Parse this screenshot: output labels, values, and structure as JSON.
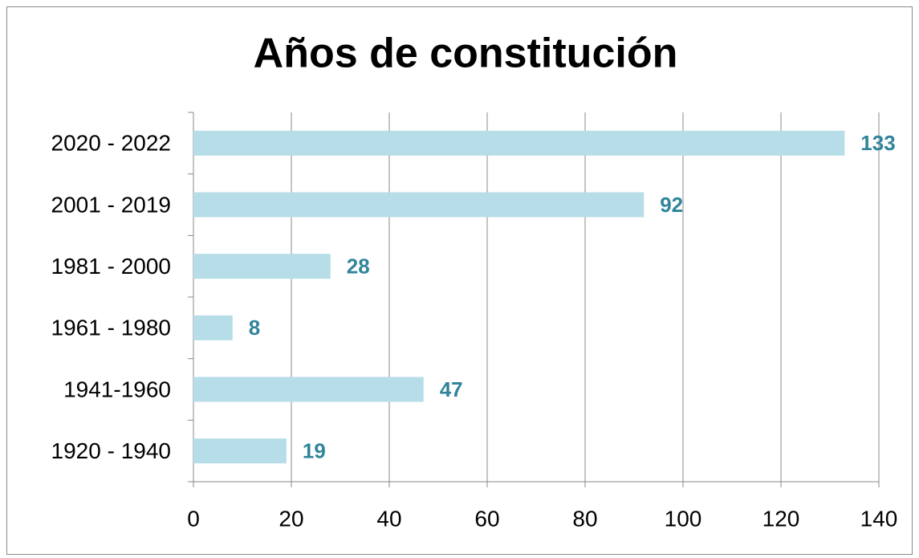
{
  "chart_data": {
    "type": "hbar",
    "title": "Años de constitución",
    "categories": [
      "2020 - 2022",
      "2001 - 2019",
      "1981 - 2000",
      "1961 - 1980",
      "1941-1960",
      "1920 - 1940"
    ],
    "values": [
      133,
      92,
      28,
      8,
      47,
      19
    ],
    "color": "#b6dde8",
    "label_color": "#31849b",
    "xlim": [
      0,
      140
    ],
    "xticks": [
      0,
      20,
      40,
      60,
      80,
      100,
      120,
      140
    ],
    "grid": true
  }
}
